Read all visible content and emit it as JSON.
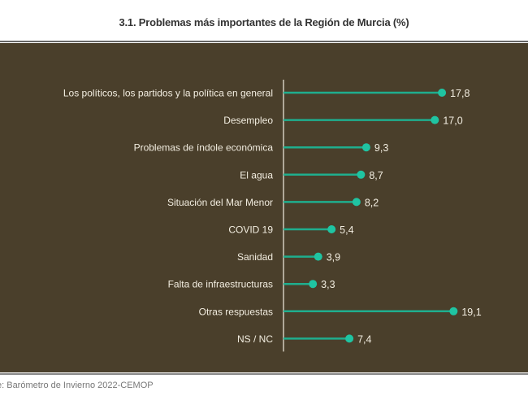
{
  "chart_data": {
    "type": "bar",
    "style": "lollipop",
    "title": "3.1. Problemas más importantes de la Región de Murcia (%)",
    "categories": [
      "Los políticos, los partidos y la política en general",
      "Desempleo",
      "Problemas de índole económica",
      "El agua",
      "Situación del Mar Menor",
      "COVID 19",
      "Sanidad",
      "Falta de infraestructuras",
      "Otras respuestas",
      "NS / NC"
    ],
    "values": [
      17.8,
      17.0,
      9.3,
      8.7,
      8.2,
      5.4,
      3.9,
      3.3,
      19.1,
      7.4
    ],
    "value_labels": [
      "17,8",
      "17,0",
      "9,3",
      "8,7",
      "8,2",
      "5,4",
      "3,9",
      "3,3",
      "19,1",
      "7,4"
    ],
    "xlim": [
      0,
      20
    ],
    "grid": false,
    "colors": {
      "background": "#4a3f2b",
      "line": "#1fae8e",
      "dot": "#1fc4a2",
      "text": "#f2ede0"
    }
  },
  "source": "e: Barómetro de Invierno 2022-CEMOP"
}
